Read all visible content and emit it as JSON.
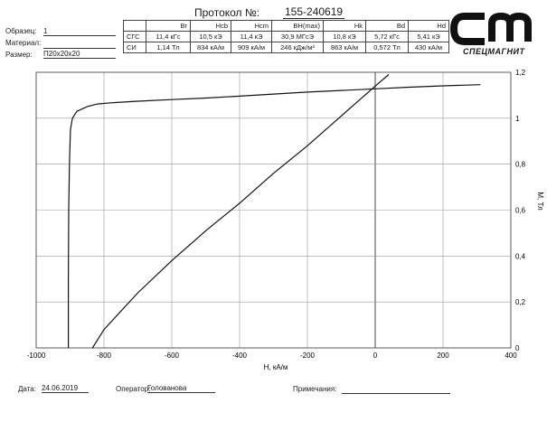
{
  "protocol": {
    "label": "Протокол №:",
    "number": "155-240619"
  },
  "sample": {
    "sample_label": "Образец:",
    "sample_value": "1",
    "material_label": "Материал:",
    "material_value": "",
    "size_label": "Размер:",
    "size_value": "П20х20х20"
  },
  "properties": {
    "headers": [
      "Br",
      "Hcb",
      "Hcm",
      "BH(max)",
      "Hk",
      "Bd",
      "Hd"
    ],
    "rows": [
      {
        "system": "СГС",
        "values": [
          "11,4 кГс",
          "10,5 кЭ",
          "11,4 кЭ",
          "30,9 МГсЭ",
          "10,8 кЭ",
          "5,72 кГс",
          "5,41 кЭ"
        ]
      },
      {
        "system": "СИ",
        "values": [
          "1,14 Тл",
          "834 кА/м",
          "909 кА/м",
          "246 кДж/м³",
          "863 кА/м",
          "0,572 Тл",
          "430 кА/м"
        ]
      }
    ]
  },
  "logo": {
    "brand": "СПЕЦМАГНИТ",
    "icon": "cm-logo-icon"
  },
  "footer": {
    "date_label": "Дата:",
    "date_value": "24.06.2019",
    "operator_label": "Оператор:",
    "operator_value": "Голованова",
    "notes_label": "Примечания:",
    "notes_value": ""
  },
  "chart_data": {
    "type": "line",
    "xlabel": "H, кА/м",
    "ylabel": "М, Тл",
    "xlim": [
      -1000,
      400
    ],
    "ylim": [
      0,
      1.2
    ],
    "x_ticks": [
      -1000,
      -800,
      -600,
      -400,
      -200,
      0,
      200,
      400
    ],
    "y_ticks": [
      0,
      0.2,
      0.4,
      0.6,
      0.8,
      1,
      1.2
    ],
    "x_tick_labels": [
      "-1000",
      "-800",
      "-600",
      "-400",
      "-200",
      "0",
      "200",
      "400"
    ],
    "y_tick_labels": [
      "0",
      "0,2",
      "0,4",
      "0,6",
      "0,8",
      "1",
      "1,2"
    ],
    "grid": true,
    "series": [
      {
        "points": [
          [
            -905,
            0
          ],
          [
            -905,
            0.3
          ],
          [
            -904,
            0.6
          ],
          [
            -902,
            0.8
          ],
          [
            -899,
            0.95
          ],
          [
            -893,
            1.0
          ],
          [
            -880,
            1.03
          ],
          [
            -850,
            1.05
          ],
          [
            -820,
            1.062
          ],
          [
            -780,
            1.067
          ],
          [
            -700,
            1.074
          ],
          [
            -600,
            1.081
          ],
          [
            -500,
            1.088
          ],
          [
            -400,
            1.096
          ],
          [
            -300,
            1.105
          ],
          [
            -200,
            1.114
          ],
          [
            -100,
            1.121
          ],
          [
            0,
            1.128
          ],
          [
            100,
            1.135
          ],
          [
            200,
            1.141
          ],
          [
            310,
            1.146
          ]
        ]
      },
      {
        "points": [
          [
            -834,
            0
          ],
          [
            -800,
            0.08
          ],
          [
            -700,
            0.24
          ],
          [
            -600,
            0.38
          ],
          [
            -500,
            0.51
          ],
          [
            -400,
            0.63
          ],
          [
            -300,
            0.76
          ],
          [
            -200,
            0.88
          ],
          [
            -100,
            1.01
          ],
          [
            0,
            1.14
          ],
          [
            40,
            1.19
          ]
        ]
      }
    ]
  }
}
